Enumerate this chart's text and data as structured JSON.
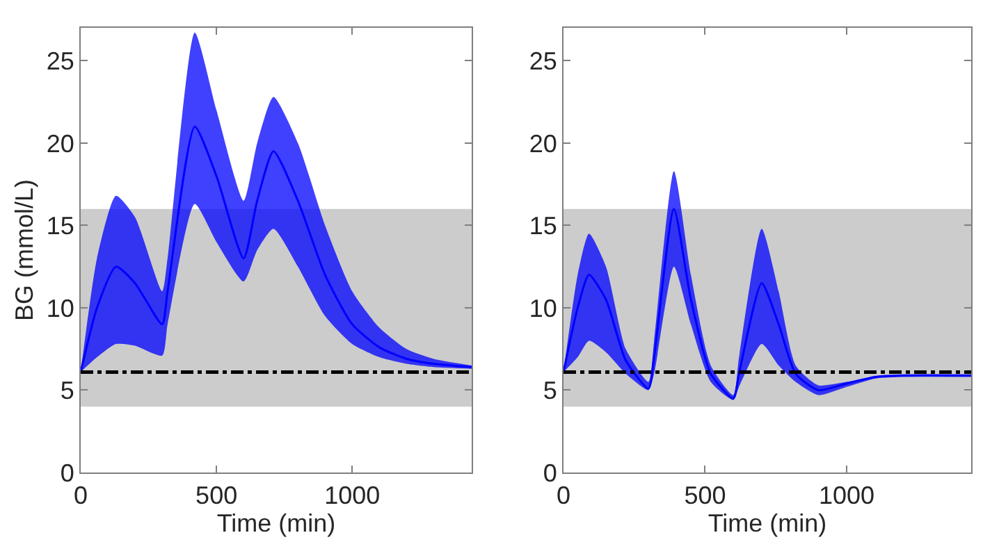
{
  "chart_data": [
    {
      "type": "line",
      "ylabel": "BG (mmol/L)",
      "xlabel": "Time (min)",
      "x": [
        0,
        60,
        130,
        200,
        300,
        320,
        420,
        500,
        600,
        650,
        710,
        800,
        900,
        1000,
        1100,
        1200,
        1300,
        1440
      ],
      "series": [
        {
          "color": "#0000ff",
          "values": [
            6.1,
            10,
            12.5,
            11.5,
            9,
            11,
            21,
            18,
            13,
            16.5,
            19.5,
            16.5,
            12,
            9,
            7.6,
            6.9,
            6.6,
            6.4
          ],
          "lower": [
            6.1,
            7,
            7.8,
            7.7,
            7.1,
            9,
            16.3,
            14,
            11.6,
            13.5,
            14.8,
            12.5,
            9.5,
            7.8,
            7,
            6.6,
            6.4,
            6.3
          ],
          "upper": [
            6.1,
            13,
            16.8,
            15.5,
            11,
            13,
            26.7,
            22,
            16.5,
            20,
            22.8,
            20,
            15,
            11,
            8.8,
            7.5,
            6.9,
            6.5
          ]
        }
      ],
      "xlim": [
        0,
        1440
      ],
      "xticks": [
        0,
        500,
        1000
      ],
      "ylim": [
        0,
        27
      ],
      "yticks": [
        0,
        5,
        10,
        15,
        20,
        25
      ],
      "grid": false,
      "marker": "none",
      "line_style": "solid",
      "ref_lines": [
        {
          "axis": "y",
          "value": 6.1,
          "color": "#000000",
          "line_style": "dashed"
        }
      ],
      "bands": [
        {
          "axis": "y",
          "from": 4,
          "to": 16,
          "color": "#cccccc"
        }
      ]
    },
    {
      "type": "line",
      "xlabel": "Time (min)",
      "x": [
        0,
        50,
        90,
        150,
        220,
        300,
        320,
        390,
        450,
        520,
        600,
        620,
        700,
        760,
        820,
        900,
        1000,
        1100,
        1200,
        1440
      ],
      "series": [
        {
          "color": "#0000ff",
          "values": [
            6.1,
            10,
            12,
            10.5,
            6.8,
            5.1,
            7,
            16,
            10.5,
            6,
            4.5,
            6,
            11.5,
            9,
            6,
            5,
            5.4,
            5.8,
            5.9,
            5.9
          ],
          "lower": [
            6.1,
            7,
            8,
            7.3,
            6,
            5,
            6,
            12.5,
            9,
            5.5,
            4.4,
            5.2,
            7.8,
            6.5,
            5.5,
            4.7,
            5.2,
            5.7,
            5.8,
            5.8
          ],
          "upper": [
            6.1,
            12,
            14.5,
            12.5,
            7.5,
            5.5,
            8,
            18.3,
            12,
            6.5,
            4.7,
            7,
            14.8,
            11,
            6.5,
            5.3,
            5.5,
            5.8,
            5.9,
            5.9
          ]
        }
      ],
      "xlim": [
        0,
        1440
      ],
      "xticks": [
        0,
        500,
        1000
      ],
      "ylim": [
        0,
        27
      ],
      "yticks": [
        0,
        5,
        10,
        15,
        20,
        25
      ],
      "grid": false,
      "marker": "none",
      "line_style": "solid",
      "ref_lines": [
        {
          "axis": "y",
          "value": 6.1,
          "color": "#000000",
          "line_style": "dashed"
        }
      ],
      "bands": [
        {
          "axis": "y",
          "from": 4,
          "to": 16,
          "color": "#cccccc"
        }
      ]
    }
  ]
}
